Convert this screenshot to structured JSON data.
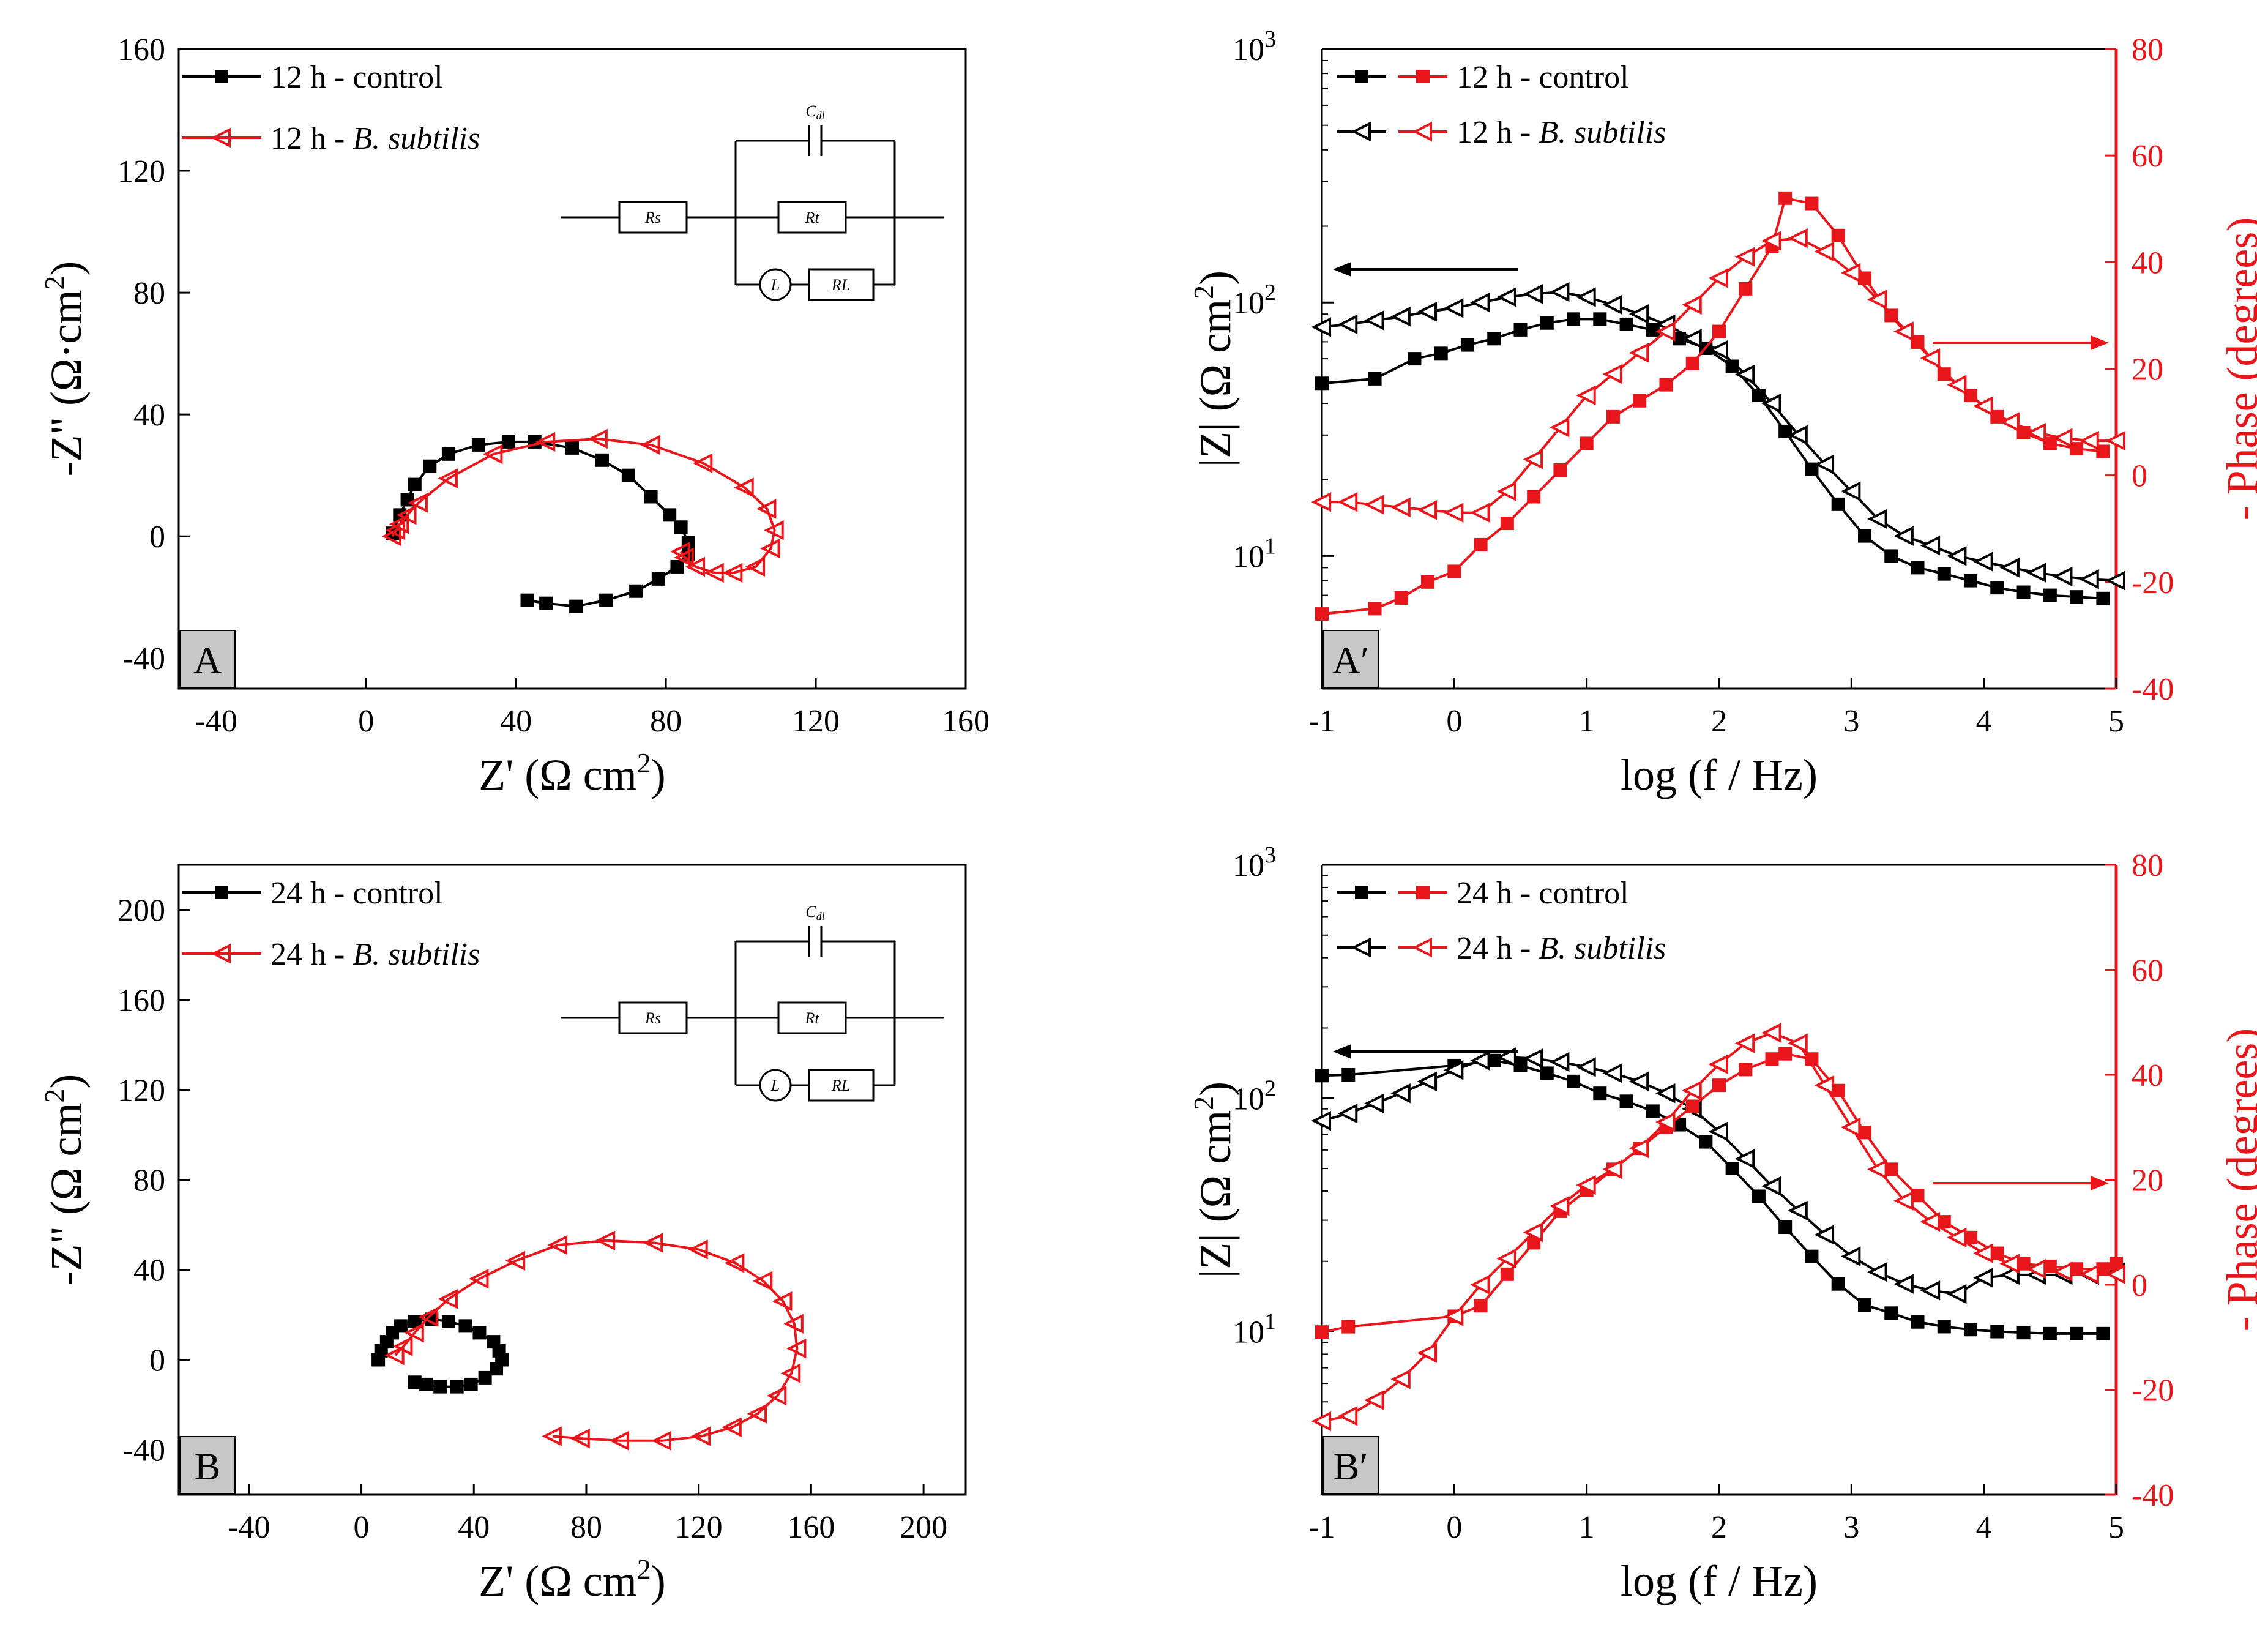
{
  "chart_data": [
    {
      "panel": "A",
      "type": "scatter",
      "x_axis": {
        "label_main": "Z' (Ω cm",
        "label_sup": "2",
        "label_close": ")",
        "range": [
          -50,
          160
        ],
        "ticks": [
          -40,
          0,
          40,
          80,
          120,
          160
        ]
      },
      "y_axis": {
        "label_main": "-Z\" (Ω·cm",
        "label_sup": "2",
        "label_close": ")",
        "range": [
          -50,
          160
        ],
        "ticks": [
          -40,
          0,
          40,
          80,
          120,
          160
        ]
      },
      "legend": [
        "12 h - control",
        "12 h - B. subtilis"
      ],
      "legend_parts": [
        {
          "pre": "12 h - control",
          "ital": ""
        },
        {
          "pre": "12 h - ",
          "ital": "B. subtilis"
        }
      ],
      "circuit": {
        "rs": "Rs",
        "rt": "Rt",
        "cdl": "Cdl",
        "l": "L",
        "rl": "RL"
      },
      "series": [
        {
          "name": "12 h - control",
          "color": "#000000",
          "marker": "square",
          "x": [
            7,
            9,
            11,
            13,
            17,
            22,
            30,
            38,
            45,
            55,
            63,
            70,
            76,
            81,
            84,
            86,
            86,
            83,
            78,
            72,
            64,
            56,
            48,
            43
          ],
          "y": [
            1,
            7,
            12,
            17,
            23,
            27,
            30,
            31,
            31,
            29,
            25,
            20,
            13,
            7,
            3,
            -2,
            -6,
            -10,
            -14,
            -18,
            -21,
            -23,
            -22,
            -21
          ]
        },
        {
          "name": "12 h - B. subtilis",
          "color": "#e8151b",
          "marker": "triangle-left",
          "x": [
            7,
            8,
            9,
            11,
            14,
            22,
            34,
            48,
            62,
            76,
            90,
            101,
            107,
            109,
            108,
            104,
            98,
            93,
            88,
            85,
            84
          ],
          "y": [
            0,
            2,
            4,
            7,
            11,
            19,
            27,
            31,
            32,
            30,
            24,
            16,
            9,
            2,
            -4,
            -10,
            -12,
            -12,
            -10,
            -7,
            -5
          ]
        }
      ]
    },
    {
      "panel": "A′",
      "type": "line",
      "x_axis": {
        "label": "log (f  / Hz)",
        "range": [
          -1,
          5
        ],
        "ticks": [
          -1,
          0,
          1,
          2,
          3,
          4,
          5
        ]
      },
      "y_axis_left": {
        "label": "|Z| (Ω cm",
        "label_sup": "2",
        "label_close": ")",
        "scale": "log",
        "range": [
          3,
          1000
        ],
        "ticks": [
          "10",
          "10",
          "10"
        ],
        "tick_exponents": [
          "1",
          "2",
          "3"
        ]
      },
      "y_axis_right": {
        "label": "- Phase (degrees)",
        "range": [
          -40,
          80
        ],
        "ticks": [
          -40,
          -20,
          0,
          20,
          40,
          60,
          80
        ]
      },
      "legend": [
        "12 h - control",
        "12 h - B. subtilis"
      ],
      "legend_parts": [
        {
          "pre": "12 h - control",
          "ital": ""
        },
        {
          "pre": "12 h - ",
          "ital": "B. subtilis"
        }
      ],
      "series": [
        {
          "name": "12 h - control |Z|",
          "axis": "left",
          "color": "#000000",
          "marker": "square",
          "x": [
            -1,
            -0.6,
            -0.3,
            -0.1,
            0.1,
            0.3,
            0.5,
            0.7,
            0.9,
            1.1,
            1.3,
            1.5,
            1.7,
            1.9,
            2.1,
            2.3,
            2.5,
            2.7,
            2.9,
            3.1,
            3.3,
            3.5,
            3.7,
            3.9,
            4.1,
            4.3,
            4.5,
            4.7,
            4.9
          ],
          "y": [
            48,
            50,
            60,
            63,
            68,
            72,
            78,
            83,
            86,
            86,
            82,
            78,
            72,
            66,
            56,
            43,
            31,
            22,
            16,
            12,
            10,
            9,
            8.5,
            8.0,
            7.5,
            7.2,
            7.0,
            6.9,
            6.8
          ]
        },
        {
          "name": "12 h - B. subtilis |Z|",
          "axis": "left",
          "color": "#000000",
          "marker": "open-triangle-left",
          "x": [
            -1,
            -0.8,
            -0.6,
            -0.4,
            -0.2,
            0,
            0.2,
            0.4,
            0.6,
            0.8,
            1.0,
            1.2,
            1.4,
            1.6,
            1.8,
            2.0,
            2.2,
            2.4,
            2.6,
            2.8,
            3.0,
            3.2,
            3.4,
            3.6,
            3.8,
            4.0,
            4.2,
            4.4,
            4.6,
            4.8,
            5.0
          ],
          "y": [
            80,
            82,
            85,
            88,
            92,
            95,
            100,
            105,
            108,
            110,
            105,
            98,
            90,
            82,
            72,
            65,
            52,
            40,
            30,
            23,
            18,
            14,
            12,
            11,
            10,
            9.5,
            9.0,
            8.6,
            8.3,
            8.1,
            8.0
          ]
        },
        {
          "name": "12 h - control phase",
          "axis": "right",
          "color": "#e8151b",
          "marker": "square",
          "x": [
            -1,
            -0.6,
            -0.4,
            -0.2,
            0,
            0.2,
            0.4,
            0.6,
            0.8,
            1.0,
            1.2,
            1.4,
            1.6,
            1.8,
            2.0,
            2.2,
            2.4,
            2.5,
            2.7,
            2.9,
            3.1,
            3.3,
            3.5,
            3.7,
            3.9,
            4.1,
            4.3,
            4.5,
            4.7,
            4.9
          ],
          "y": [
            -26,
            -25,
            -23,
            -20,
            -18,
            -13,
            -9,
            -4,
            1,
            6,
            11,
            14,
            17,
            21,
            27,
            35,
            43,
            52,
            51,
            45,
            37,
            30,
            25,
            19,
            15,
            11,
            8,
            6,
            5,
            4.5
          ]
        },
        {
          "name": "12 h - B. subtilis phase",
          "axis": "right",
          "color": "#e8151b",
          "marker": "open-triangle-left",
          "x": [
            -1,
            -0.8,
            -0.6,
            -0.4,
            -0.2,
            0,
            0.2,
            0.4,
            0.6,
            0.8,
            1.0,
            1.2,
            1.4,
            1.6,
            1.8,
            2.0,
            2.2,
            2.4,
            2.6,
            2.8,
            3.0,
            3.2,
            3.4,
            3.6,
            3.8,
            4.0,
            4.2,
            4.4,
            4.6,
            4.8,
            5.0
          ],
          "y": [
            -5,
            -5,
            -5.5,
            -6,
            -6.5,
            -7,
            -7,
            -3,
            3,
            9,
            15,
            19,
            23,
            27,
            32,
            37,
            41,
            44,
            44.5,
            42,
            38,
            33,
            27,
            22,
            17,
            13,
            10,
            8,
            7,
            6.5,
            6.5
          ]
        }
      ]
    },
    {
      "panel": "B",
      "type": "scatter",
      "x_axis": {
        "label_main": "Z' (Ω cm",
        "label_sup": "2",
        "label_close": ")",
        "range": [
          -65,
          215
        ],
        "ticks": [
          -40,
          0,
          40,
          80,
          120,
          160,
          200
        ]
      },
      "y_axis": {
        "label_main": "-Z\" (Ω cm",
        "label_sup": "2",
        "label_close": ")",
        "range": [
          -60,
          220
        ],
        "ticks": [
          -40,
          0,
          40,
          80,
          120,
          160,
          200
        ]
      },
      "legend": [
        "24 h - control",
        "24 h - B. subtilis"
      ],
      "legend_parts": [
        {
          "pre": "24 h - control",
          "ital": ""
        },
        {
          "pre": "24 h - ",
          "ital": "B. subtilis"
        }
      ],
      "circuit": {
        "rs": "Rs",
        "rt": "Rt",
        "cdl": "Cdl",
        "l": "L",
        "rl": "RL"
      },
      "series": [
        {
          "name": "24 h - control",
          "color": "#000000",
          "marker": "square",
          "x": [
            6,
            7,
            9,
            11,
            14,
            19,
            25,
            31,
            37,
            42,
            47,
            49,
            50,
            48,
            44,
            39,
            34,
            28,
            23,
            19
          ],
          "y": [
            0,
            4,
            8,
            12,
            15,
            17,
            18,
            17,
            15,
            12,
            8,
            4,
            0,
            -4,
            -8,
            -11,
            -12,
            -12,
            -11,
            -10
          ]
        },
        {
          "name": "24 h - B. subtilis",
          "color": "#e8151b",
          "marker": "triangle-left",
          "x": [
            12,
            15,
            19,
            24,
            31,
            42,
            55,
            70,
            87,
            104,
            120,
            133,
            143,
            150,
            154,
            155,
            153,
            148,
            141,
            132,
            121,
            107,
            92,
            78,
            68
          ],
          "y": [
            2,
            6,
            12,
            19,
            27,
            36,
            44,
            51,
            53,
            52,
            49,
            43,
            35,
            26,
            16,
            5,
            -6,
            -16,
            -24,
            -30,
            -34,
            -36,
            -36,
            -35,
            -34
          ]
        }
      ]
    },
    {
      "panel": "B′",
      "type": "line",
      "x_axis": {
        "label": "log (f  / Hz)",
        "range": [
          -1,
          5
        ],
        "ticks": [
          -1,
          0,
          1,
          2,
          3,
          4,
          5
        ]
      },
      "y_axis_left": {
        "label": "|Z| (Ω cm",
        "label_sup": "2",
        "label_close": ")",
        "scale": "log",
        "range": [
          2,
          1000
        ],
        "ticks": [
          "10",
          "10",
          "10"
        ],
        "tick_exponents": [
          "1",
          "2",
          "3"
        ]
      },
      "y_axis_right": {
        "label": "- Phase (degrees)",
        "range": [
          -40,
          80
        ],
        "ticks": [
          -40,
          -20,
          0,
          20,
          40,
          60,
          80
        ]
      },
      "legend": [
        "24 h - control",
        "24 h - B. subtilis"
      ],
      "legend_parts": [
        {
          "pre": "24 h - control",
          "ital": ""
        },
        {
          "pre": "24 h - ",
          "ital": "B. subtilis"
        }
      ],
      "series": [
        {
          "name": "24 h - control |Z|",
          "axis": "left",
          "color": "#000000",
          "marker": "square",
          "x": [
            -1,
            -0.8,
            0,
            0.3,
            0.5,
            0.7,
            0.9,
            1.1,
            1.3,
            1.5,
            1.7,
            1.9,
            2.1,
            2.3,
            2.5,
            2.7,
            2.9,
            3.1,
            3.3,
            3.5,
            3.7,
            3.9,
            4.1,
            4.3,
            4.5,
            4.7,
            4.9
          ],
          "y": [
            125,
            126,
            138,
            145,
            138,
            128,
            118,
            105,
            97,
            88,
            77,
            65,
            50,
            38,
            28,
            21,
            16,
            13,
            12,
            11,
            10.5,
            10.2,
            10,
            9.9,
            9.8,
            9.8,
            9.8
          ]
        },
        {
          "name": "24 h - B. subtilis |Z|",
          "axis": "left",
          "color": "#000000",
          "marker": "open-triangle-left",
          "x": [
            -1,
            -0.8,
            -0.6,
            -0.4,
            -0.2,
            0,
            0.2,
            0.4,
            0.6,
            0.8,
            1.0,
            1.2,
            1.4,
            1.6,
            1.8,
            2.0,
            2.2,
            2.4,
            2.6,
            2.8,
            3.0,
            3.2,
            3.4,
            3.6,
            3.8,
            4.0,
            4.2,
            4.4,
            4.6,
            4.8,
            5.0
          ],
          "y": [
            80,
            86,
            95,
            105,
            118,
            132,
            145,
            150,
            148,
            143,
            136,
            128,
            118,
            105,
            90,
            72,
            55,
            42,
            33,
            26,
            21,
            18,
            16,
            15,
            14.5,
            17,
            17.5,
            17.5,
            17.5,
            17.5,
            18
          ]
        },
        {
          "name": "24 h - control phase",
          "axis": "right",
          "color": "#e8151b",
          "marker": "square",
          "x": [
            -1,
            -0.8,
            0,
            0.2,
            0.4,
            0.6,
            0.8,
            1.0,
            1.2,
            1.4,
            1.6,
            1.8,
            2.0,
            2.2,
            2.4,
            2.5,
            2.7,
            2.9,
            3.1,
            3.3,
            3.5,
            3.7,
            3.9,
            4.1,
            4.3,
            4.5,
            4.7,
            4.9,
            5.0
          ],
          "y": [
            -9,
            -8,
            -6,
            -4,
            2,
            8,
            14,
            18,
            22,
            26,
            30,
            34,
            38,
            41,
            43,
            44,
            43,
            37,
            29,
            22,
            17,
            12,
            9,
            6,
            4,
            3.5,
            3,
            3,
            4
          ]
        },
        {
          "name": "24 h - B. subtilis phase",
          "axis": "right",
          "color": "#e8151b",
          "marker": "open-triangle-left",
          "x": [
            -1,
            -0.8,
            -0.6,
            -0.4,
            -0.2,
            0,
            0.2,
            0.4,
            0.6,
            0.8,
            1.0,
            1.2,
            1.4,
            1.6,
            1.8,
            2.0,
            2.2,
            2.4,
            2.6,
            2.8,
            3.0,
            3.2,
            3.4,
            3.6,
            3.8,
            4.0,
            4.2,
            4.4,
            4.6,
            4.8,
            5.0
          ],
          "y": [
            -26,
            -25,
            -22,
            -18,
            -13,
            -6,
            0,
            5,
            10,
            15,
            19,
            22,
            26,
            31,
            37,
            42,
            46,
            48,
            46,
            38,
            30,
            22,
            16,
            12,
            9,
            6,
            4,
            3,
            2.5,
            2,
            2
          ]
        }
      ]
    }
  ],
  "panel_labels": [
    "A",
    "A′",
    "B",
    "B′"
  ],
  "colors": {
    "black": "#000000",
    "red": "#e8151b",
    "label_bg": "#c7c7c7"
  }
}
